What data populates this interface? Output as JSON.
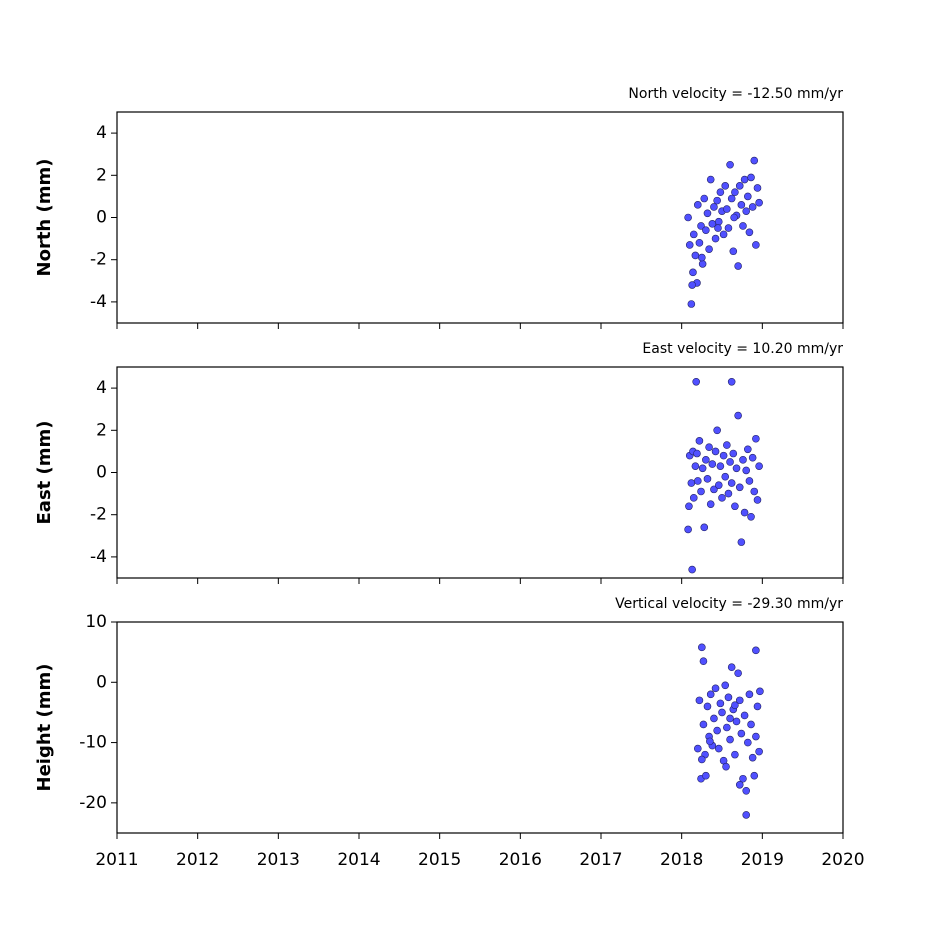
{
  "chart_data": [
    {
      "type": "scatter",
      "subtitle": "North velocity = -12.50 mm/yr",
      "ylabel": "North (mm)",
      "color": "#5050ff",
      "edge_color": "#222266",
      "show_xtick_labels": false,
      "xlim": [
        2011,
        2020
      ],
      "xticks": [
        2011,
        2012,
        2013,
        2014,
        2015,
        2016,
        2017,
        2018,
        2019,
        2020
      ],
      "ylim": [
        -5,
        5
      ],
      "yticks": [
        -4,
        -2,
        0,
        2,
        4
      ],
      "x": [
        2018.08,
        2018.1,
        2018.12,
        2018.14,
        2018.15,
        2018.17,
        2018.19,
        2018.2,
        2018.22,
        2018.24,
        2018.26,
        2018.28,
        2018.3,
        2018.32,
        2018.34,
        2018.36,
        2018.38,
        2018.4,
        2018.42,
        2018.44,
        2018.46,
        2018.48,
        2018.5,
        2018.52,
        2018.54,
        2018.56,
        2018.58,
        2018.6,
        2018.62,
        2018.64,
        2018.66,
        2018.68,
        2018.7,
        2018.72,
        2018.74,
        2018.76,
        2018.78,
        2018.8,
        2018.82,
        2018.84,
        2018.86,
        2018.88,
        2018.9,
        2018.92,
        2018.94,
        2018.96,
        2018.13,
        2018.25,
        2018.45,
        2018.65
      ],
      "values": [
        0,
        -1.3,
        -4.1,
        -2.6,
        -0.8,
        -1.8,
        -3.1,
        0.6,
        -1.2,
        -0.4,
        -2.2,
        0.9,
        -0.6,
        0.2,
        -1.5,
        1.8,
        -0.3,
        0.5,
        -1.0,
        0.8,
        -0.2,
        1.2,
        0.3,
        -0.8,
        1.5,
        0.4,
        -0.5,
        2.5,
        0.9,
        -1.6,
        1.2,
        0.1,
        -2.3,
        1.5,
        0.6,
        -0.4,
        1.8,
        0.3,
        1.0,
        -0.7,
        1.9,
        0.5,
        2.7,
        -1.3,
        1.4,
        0.7,
        -3.2,
        -1.9,
        -0.5,
        0.0
      ]
    },
    {
      "type": "scatter",
      "subtitle": "East velocity = 10.20 mm/yr",
      "ylabel": "East (mm)",
      "color": "#5050ff",
      "edge_color": "#222266",
      "show_xtick_labels": false,
      "xlim": [
        2011,
        2020
      ],
      "xticks": [
        2011,
        2012,
        2013,
        2014,
        2015,
        2016,
        2017,
        2018,
        2019,
        2020
      ],
      "ylim": [
        -5,
        5
      ],
      "yticks": [
        -4,
        -2,
        0,
        2,
        4
      ],
      "x": [
        2018.08,
        2018.1,
        2018.12,
        2018.14,
        2018.15,
        2018.17,
        2018.19,
        2018.2,
        2018.22,
        2018.24,
        2018.26,
        2018.28,
        2018.3,
        2018.32,
        2018.34,
        2018.36,
        2018.38,
        2018.4,
        2018.42,
        2018.44,
        2018.46,
        2018.48,
        2018.5,
        2018.52,
        2018.54,
        2018.56,
        2018.58,
        2018.6,
        2018.62,
        2018.64,
        2018.66,
        2018.68,
        2018.7,
        2018.72,
        2018.74,
        2018.76,
        2018.78,
        2018.8,
        2018.82,
        2018.84,
        2018.86,
        2018.88,
        2018.9,
        2018.92,
        2018.94,
        2018.96,
        2018.13,
        2018.18,
        2018.62,
        2018.09
      ],
      "values": [
        -2.7,
        0.8,
        -0.5,
        1.0,
        -1.2,
        0.3,
        0.9,
        -0.4,
        1.5,
        -0.9,
        0.2,
        -2.6,
        0.6,
        -0.3,
        1.2,
        -1.5,
        0.4,
        -0.8,
        1.0,
        2.0,
        -0.6,
        0.3,
        -1.2,
        0.8,
        -0.2,
        1.3,
        -1.0,
        0.5,
        -0.5,
        0.9,
        -1.6,
        0.2,
        2.7,
        -0.7,
        -3.3,
        0.6,
        -1.9,
        0.1,
        1.1,
        -0.4,
        -2.1,
        0.7,
        -0.9,
        1.6,
        -1.3,
        0.3,
        -4.6,
        4.3,
        4.3,
        -1.6
      ]
    },
    {
      "type": "scatter",
      "subtitle": "Vertical velocity = -29.30 mm/yr",
      "ylabel": "Height (mm)",
      "color": "#5050ff",
      "edge_color": "#222266",
      "show_xtick_labels": true,
      "xlim": [
        2011,
        2020
      ],
      "xticks": [
        2011,
        2012,
        2013,
        2014,
        2015,
        2016,
        2017,
        2018,
        2019,
        2020
      ],
      "ylim": [
        -25,
        10
      ],
      "yticks": [
        -20,
        -10,
        0,
        10
      ],
      "x": [
        2018.2,
        2018.22,
        2018.24,
        2018.25,
        2018.27,
        2018.29,
        2018.3,
        2018.32,
        2018.34,
        2018.36,
        2018.38,
        2018.4,
        2018.42,
        2018.44,
        2018.46,
        2018.48,
        2018.5,
        2018.52,
        2018.54,
        2018.56,
        2018.58,
        2018.6,
        2018.62,
        2018.64,
        2018.66,
        2018.68,
        2018.7,
        2018.72,
        2018.74,
        2018.76,
        2018.78,
        2018.8,
        2018.82,
        2018.84,
        2018.86,
        2018.88,
        2018.9,
        2018.92,
        2018.94,
        2018.96,
        2018.25,
        2018.27,
        2018.55,
        2018.8,
        2018.92,
        2018.6,
        2018.35,
        2018.72,
        2018.66,
        2018.97
      ],
      "values": [
        -11,
        -3,
        -16,
        5.8,
        -7,
        -12,
        -15.5,
        -4,
        -9,
        -2,
        -10.5,
        -6,
        -1,
        -8,
        -11,
        -3.5,
        -5,
        -13,
        -0.5,
        -7.5,
        -2.5,
        -9.5,
        2.5,
        -4.5,
        -12,
        -6.5,
        1.5,
        -3,
        -8.5,
        -16,
        -5.5,
        -18,
        -10,
        -2,
        -7,
        -12.5,
        -15.5,
        -9,
        -4,
        -11.5,
        -12.8,
        3.5,
        -14,
        -22,
        5.3,
        -6,
        -9.8,
        -17,
        -3.8,
        -1.5
      ]
    }
  ]
}
